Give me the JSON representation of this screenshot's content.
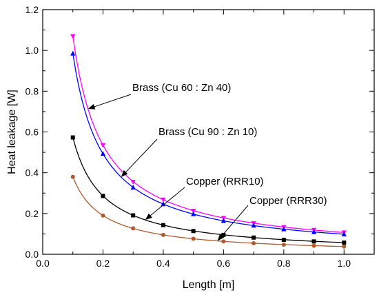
{
  "chart_data": {
    "type": "line",
    "title": "",
    "xlabel": "Length [m]",
    "ylabel": "Heat leakage [W]",
    "xlim": [
      0.0,
      1.1
    ],
    "ylim": [
      0.0,
      1.2
    ],
    "xticks": [
      "0.0",
      "0.2",
      "0.4",
      "0.6",
      "0.8",
      "1.0"
    ],
    "yticks": [
      "0.0",
      "0.2",
      "0.4",
      "0.6",
      "0.8",
      "1.0",
      "1.2"
    ],
    "grid": false,
    "legend": "none",
    "series": [
      {
        "name": "Brass (Cu 60 : Zn 40)",
        "color": "#ff00ff",
        "marker": "triangle-down",
        "x": [
          0.1,
          0.2,
          0.3,
          0.4,
          0.5,
          0.6,
          0.7,
          0.8,
          0.9,
          1.0
        ],
        "y": [
          1.07,
          0.535,
          0.355,
          0.268,
          0.213,
          0.178,
          0.152,
          0.133,
          0.119,
          0.107
        ]
      },
      {
        "name": "Brass (Cu 90 : Zn 10)",
        "color": "#0000ff",
        "marker": "triangle-up",
        "x": [
          0.1,
          0.2,
          0.3,
          0.4,
          0.5,
          0.6,
          0.7,
          0.8,
          0.9,
          1.0
        ],
        "y": [
          0.985,
          0.493,
          0.328,
          0.246,
          0.197,
          0.164,
          0.141,
          0.123,
          0.109,
          0.098
        ]
      },
      {
        "name": "Copper (RRR10)",
        "color": "#000000",
        "marker": "square",
        "x": [
          0.1,
          0.2,
          0.3,
          0.4,
          0.5,
          0.6,
          0.7,
          0.8,
          0.9,
          1.0
        ],
        "y": [
          0.573,
          0.286,
          0.191,
          0.143,
          0.114,
          0.095,
          0.082,
          0.071,
          0.063,
          0.057
        ]
      },
      {
        "name": "Copper (RRR30)",
        "color": "#b05a2e",
        "marker": "circle",
        "x": [
          0.1,
          0.2,
          0.3,
          0.4,
          0.5,
          0.6,
          0.7,
          0.8,
          0.9,
          1.0
        ],
        "y": [
          0.38,
          0.19,
          0.127,
          0.095,
          0.076,
          0.063,
          0.054,
          0.047,
          0.042,
          0.038
        ]
      }
    ],
    "annotations": [
      {
        "text": "Brass (Cu 60 : Zn 40)",
        "series": 0,
        "x": 0.15
      },
      {
        "text": "Brass (Cu 90 : Zn 10)",
        "series": 1,
        "x": 0.26
      },
      {
        "text": "Copper (RRR10)",
        "series": 2,
        "x": 0.34
      },
      {
        "text": "Copper (RRR30)",
        "series": 3,
        "x": 0.58
      }
    ]
  }
}
